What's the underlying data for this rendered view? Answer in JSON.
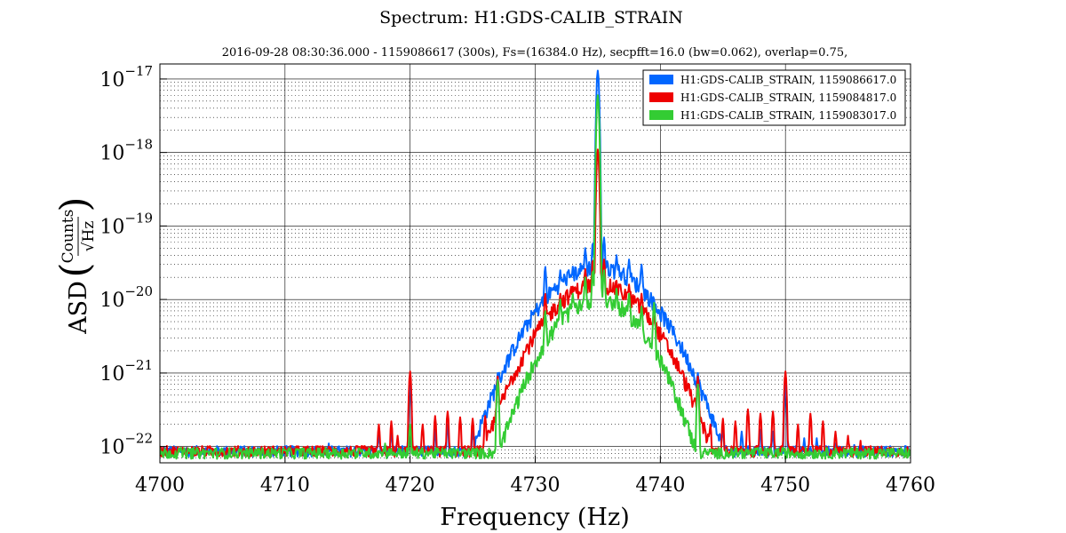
{
  "chart_data": {
    "type": "line",
    "title": "Spectrum: H1:GDS-CALIB_STRAIN",
    "subtitle": "2016-09-28 08:30:36.000 - 1159086617 (300s), Fs=(16384.0 Hz), secpfft=16.0 (bw=0.062), overlap=0.75,",
    "xlabel": "Frequency (Hz)",
    "ylabel": {
      "prefix": "ASD",
      "numerator": "Counts",
      "denominator": "√Hz"
    },
    "xlim": [
      4700,
      4760
    ],
    "ylim": [
      6e-23,
      1.6e-17
    ],
    "yscale": "log",
    "grid": true,
    "legend_position": "top-right",
    "x_ticks": [
      "4700",
      "4710",
      "4720",
      "4730",
      "4740",
      "4750",
      "4760"
    ],
    "y_ticks": [
      {
        "base": "10",
        "exp": "−17"
      },
      {
        "base": "10",
        "exp": "−18"
      },
      {
        "base": "10",
        "exp": "−19"
      },
      {
        "base": "10",
        "exp": "−20"
      },
      {
        "base": "10",
        "exp": "−21"
      },
      {
        "base": "10",
        "exp": "−22"
      }
    ],
    "series": [
      {
        "name": "H1:GDS-CALIB_STRAIN, 1159086617.0",
        "color": "#0066ff",
        "floor": 8.5e-23,
        "peaks": [
          [
            4713.5,
            1.1e-22
          ],
          [
            4717.5,
            1.5e-22
          ],
          [
            4718.5,
            1.6e-22
          ],
          [
            4720,
            8e-22
          ],
          [
            4722,
            1.7e-22
          ],
          [
            4723,
            2e-22
          ],
          [
            4725,
            1.6e-22
          ],
          [
            4726,
            1.8e-22
          ],
          [
            4727,
            1e-21
          ],
          [
            4728,
            2.2e-22
          ],
          [
            4729,
            6e-22
          ],
          [
            4729.5,
            1e-21
          ],
          [
            4730.2,
            2.5e-21
          ],
          [
            4730.8,
            2.8e-20
          ],
          [
            4731.5,
            1e-20
          ],
          [
            4732,
            2.5e-20
          ],
          [
            4733,
            2.8e-20
          ],
          [
            4734,
            5e-20
          ],
          [
            4734.6,
            6e-20
          ],
          [
            4735,
            1.3e-17
          ],
          [
            4735.5,
            7e-20
          ],
          [
            4736.5,
            4e-20
          ],
          [
            4737.5,
            3.5e-20
          ],
          [
            4738.5,
            3e-20
          ],
          [
            4739.5,
            1e-20
          ],
          [
            4740.5,
            2.5e-21
          ],
          [
            4741.5,
            1.5e-21
          ],
          [
            4743,
            1e-21
          ],
          [
            4745,
            1.8e-22
          ],
          [
            4746.5,
            1.6e-22
          ],
          [
            4748,
            1.7e-22
          ],
          [
            4749,
            1.6e-22
          ],
          [
            4750,
            7e-22
          ],
          [
            4751.5,
            1.3e-22
          ],
          [
            4752.5,
            1.3e-22
          ],
          [
            4754,
            1.1e-22
          ],
          [
            4755.5,
            1.05e-22
          ]
        ],
        "envelope": {
          "center": 4735,
          "peak": 2.8e-20,
          "width": 4.2
        }
      },
      {
        "name": "H1:GDS-CALIB_STRAIN, 1159084817.0",
        "color": "#ee0000",
        "floor": 8.5e-23,
        "peaks": [
          [
            4717.5,
            2e-22
          ],
          [
            4718.5,
            2.2e-22
          ],
          [
            4719,
            1.4e-22
          ],
          [
            4720,
            1.05e-21
          ],
          [
            4721,
            2e-22
          ],
          [
            4722,
            2.6e-22
          ],
          [
            4723,
            3e-22
          ],
          [
            4724,
            2.5e-22
          ],
          [
            4725,
            2.4e-22
          ],
          [
            4726,
            2.6e-22
          ],
          [
            4727,
            9e-22
          ],
          [
            4728,
            3e-22
          ],
          [
            4729,
            5e-22
          ],
          [
            4729.5,
            7e-22
          ],
          [
            4730.2,
            1.8e-21
          ],
          [
            4730.8,
            1.2e-20
          ],
          [
            4731.5,
            6e-21
          ],
          [
            4732,
            1.2e-20
          ],
          [
            4733,
            1.5e-20
          ],
          [
            4734,
            2.6e-20
          ],
          [
            4734.6,
            3.5e-20
          ],
          [
            4735,
            1.1e-18
          ],
          [
            4735.5,
            3.5e-20
          ],
          [
            4736.5,
            1.8e-20
          ],
          [
            4737.5,
            1.6e-20
          ],
          [
            4738.5,
            1.2e-20
          ],
          [
            4739.5,
            6e-21
          ],
          [
            4740.5,
            1.8e-21
          ],
          [
            4741.5,
            1.1e-21
          ],
          [
            4743,
            9e-22
          ],
          [
            4744,
            2e-22
          ],
          [
            4745,
            2.4e-22
          ],
          [
            4746,
            2.2e-22
          ],
          [
            4747,
            3.2e-22
          ],
          [
            4748,
            2.8e-22
          ],
          [
            4749,
            3e-22
          ],
          [
            4750,
            1.05e-21
          ],
          [
            4751,
            2e-22
          ],
          [
            4752,
            2.8e-22
          ],
          [
            4753,
            2.2e-22
          ],
          [
            4754,
            1.6e-22
          ],
          [
            4755,
            1.4e-22
          ],
          [
            4756,
            1.2e-22
          ]
        ],
        "envelope": {
          "center": 4735,
          "peak": 1.6e-20,
          "width": 4.0
        }
      },
      {
        "name": "H1:GDS-CALIB_STRAIN, 1159083017.0",
        "color": "#33cc33",
        "floor": 8e-23,
        "peaks": [
          [
            4718,
            1.1e-22
          ],
          [
            4720,
            2e-22
          ],
          [
            4727,
            8e-22
          ],
          [
            4730.8,
            7e-21
          ],
          [
            4732,
            1e-20
          ],
          [
            4733,
            1.2e-20
          ],
          [
            4734,
            2e-20
          ],
          [
            4734.6,
            2.5e-20
          ],
          [
            4735,
            6e-18
          ],
          [
            4735.5,
            2.5e-20
          ],
          [
            4736.5,
            1.4e-20
          ],
          [
            4737.5,
            1.2e-20
          ],
          [
            4738.5,
            8e-21
          ],
          [
            4739.5,
            9e-21
          ],
          [
            4740.5,
            1.2e-21
          ],
          [
            4743,
            7e-22
          ]
        ],
        "envelope": {
          "center": 4735,
          "peak": 1e-20,
          "width": 3.6
        }
      }
    ]
  }
}
